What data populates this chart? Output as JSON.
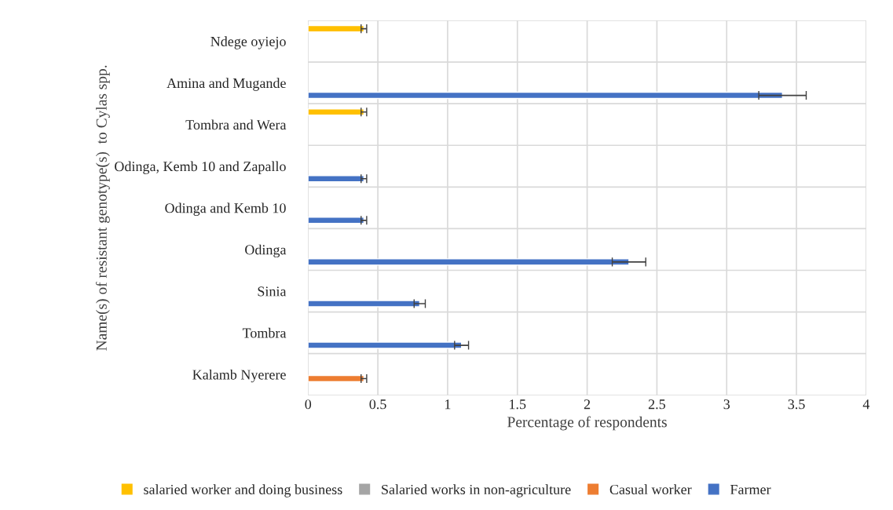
{
  "chart_data": {
    "type": "bar",
    "orientation": "horizontal",
    "xlabel": "Percentage of respondents",
    "ylabel": "Name(s) of resistant genotype(s)  to Cylas spp.",
    "categories": [
      "Ndege oyiejo",
      "Amina and Mugande",
      "Tombra and Wera",
      "Odinga, Kemb 10 and Zapallo",
      "Odinga and Kemb 10",
      "Odinga",
      "Sinia",
      "Tombra",
      "Kalamb Nyerere"
    ],
    "series": [
      {
        "name": "salaried worker and doing business",
        "color": "#ffc000",
        "values": [
          0.4,
          null,
          0.4,
          null,
          null,
          null,
          null,
          null,
          null
        ],
        "errors": [
          0.02,
          null,
          0.02,
          null,
          null,
          null,
          null,
          null,
          null
        ]
      },
      {
        "name": "Salaried works in non-agriculture",
        "color": "#a5a5a5",
        "values": [
          null,
          null,
          null,
          null,
          null,
          null,
          null,
          null,
          null
        ]
      },
      {
        "name": "Casual worker",
        "color": "#ed7d31",
        "values": [
          null,
          null,
          null,
          null,
          null,
          null,
          null,
          null,
          0.4
        ],
        "errors": [
          null,
          null,
          null,
          null,
          null,
          null,
          null,
          null,
          0.02
        ]
      },
      {
        "name": "Farmer",
        "color": "#4472c4",
        "values": [
          null,
          3.4,
          null,
          0.4,
          0.4,
          2.3,
          0.8,
          1.1,
          null
        ],
        "errors": [
          null,
          0.17,
          null,
          0.02,
          0.02,
          0.12,
          0.04,
          0.05,
          null
        ]
      }
    ],
    "xlim": [
      0,
      4
    ],
    "xticks": [
      0,
      0.5,
      1,
      1.5,
      2,
      2.5,
      3,
      3.5,
      4
    ],
    "grid": true,
    "legend": "bottom"
  }
}
